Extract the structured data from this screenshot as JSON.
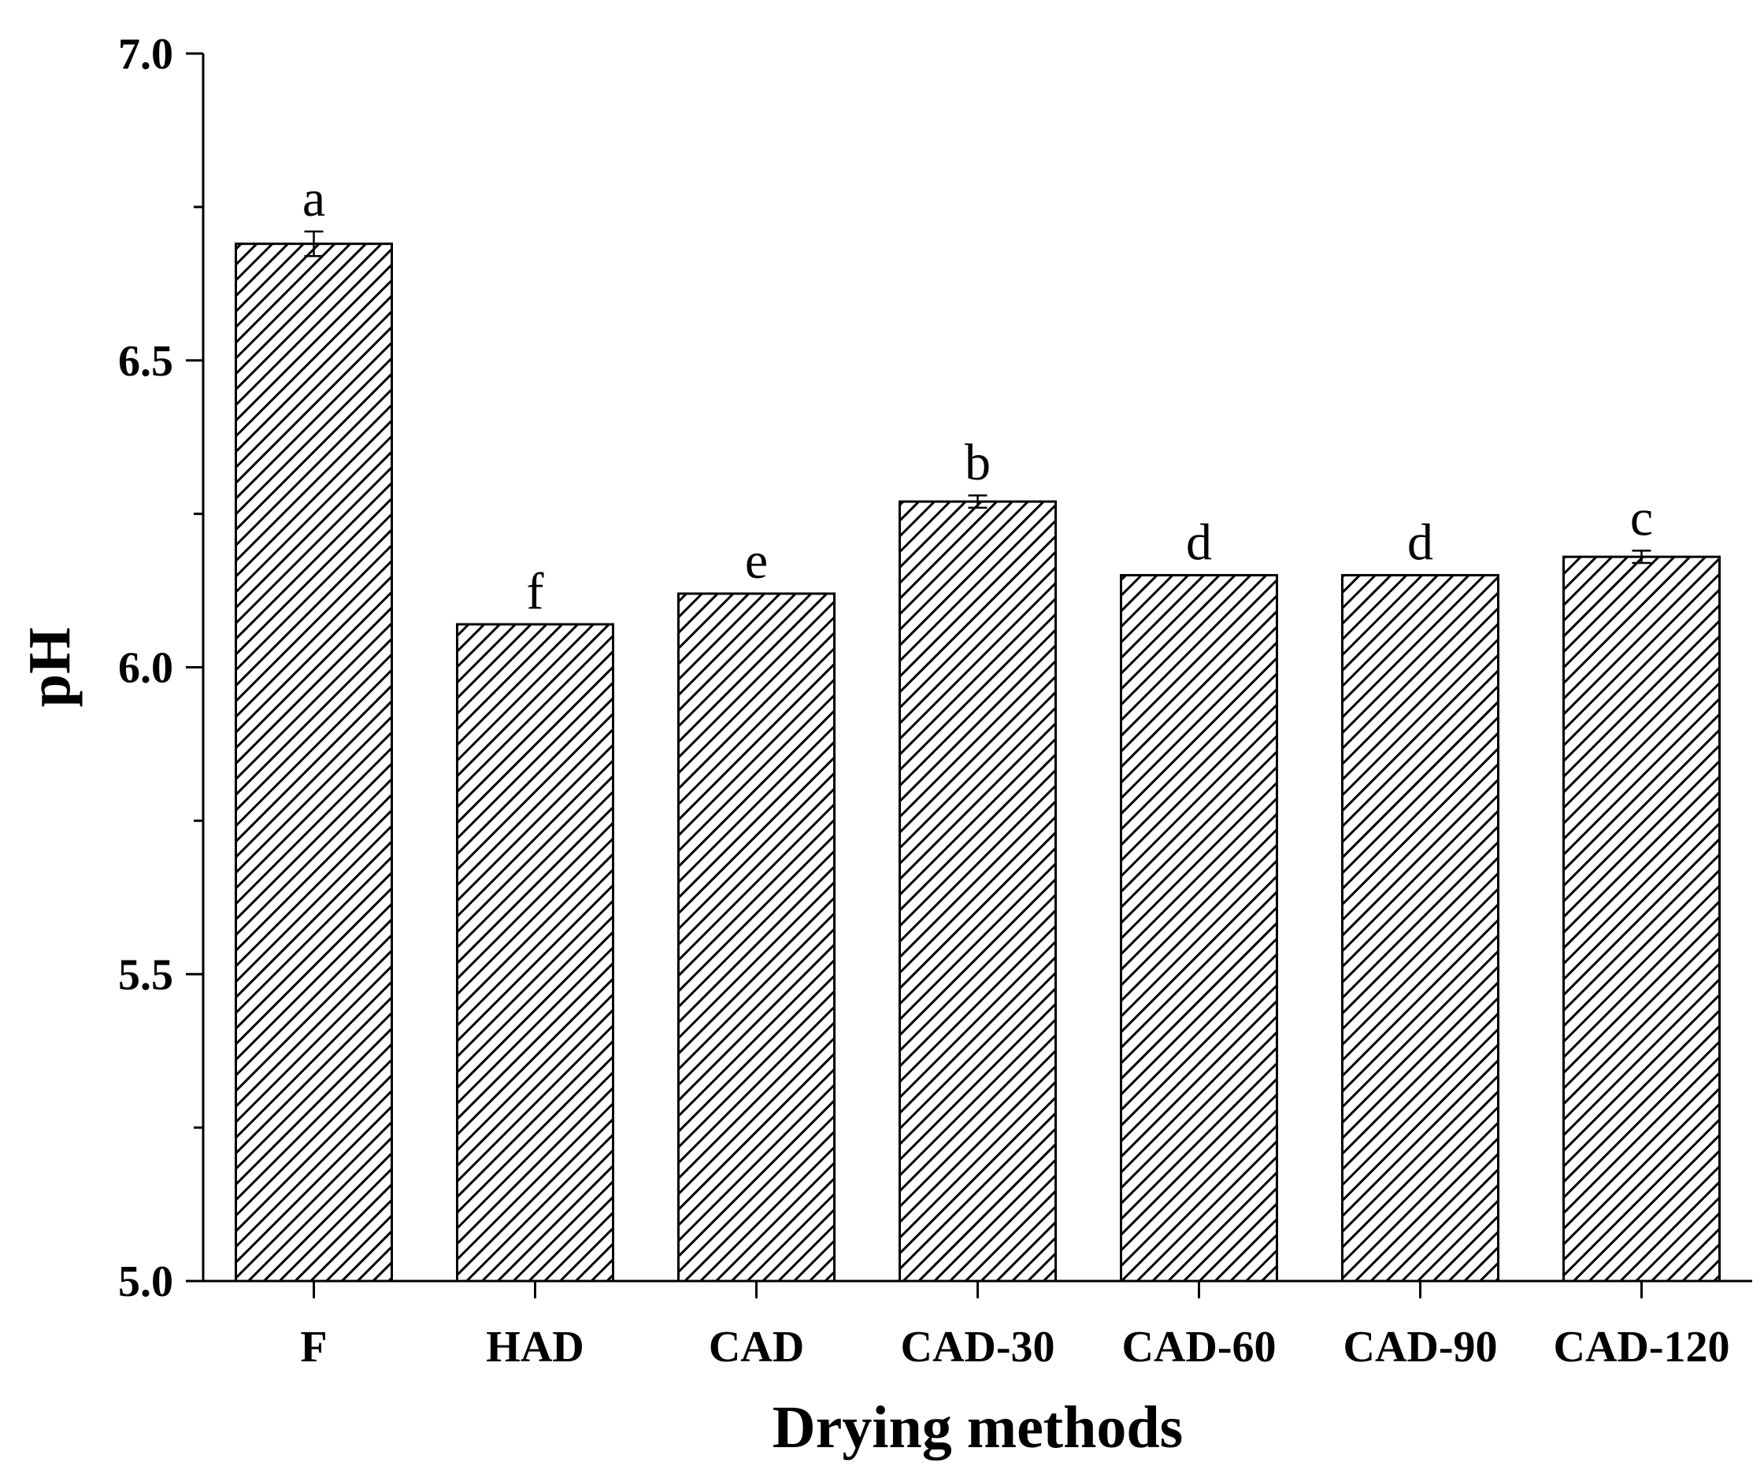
{
  "chart_data": {
    "type": "bar",
    "categories": [
      "F",
      "HAD",
      "CAD",
      "CAD-30",
      "CAD-60",
      "CAD-90",
      "CAD-120"
    ],
    "values": [
      6.69,
      6.07,
      6.12,
      6.27,
      6.15,
      6.15,
      6.18
    ],
    "errors": [
      0.02,
      0.0,
      0.0,
      0.01,
      0.0,
      0.0,
      0.01
    ],
    "significance_letters": [
      "a",
      "f",
      "e",
      "b",
      "d",
      "d",
      "c"
    ],
    "title": "",
    "xlabel": "Drying methods",
    "ylabel": "pH",
    "ylim": [
      5.0,
      7.0
    ],
    "yticks": [
      "5.0",
      "5.5",
      "6.0",
      "6.5",
      "7.0"
    ],
    "bar_fill": "hatched",
    "bar_color": "#000000",
    "grid": false,
    "legend": "none"
  }
}
